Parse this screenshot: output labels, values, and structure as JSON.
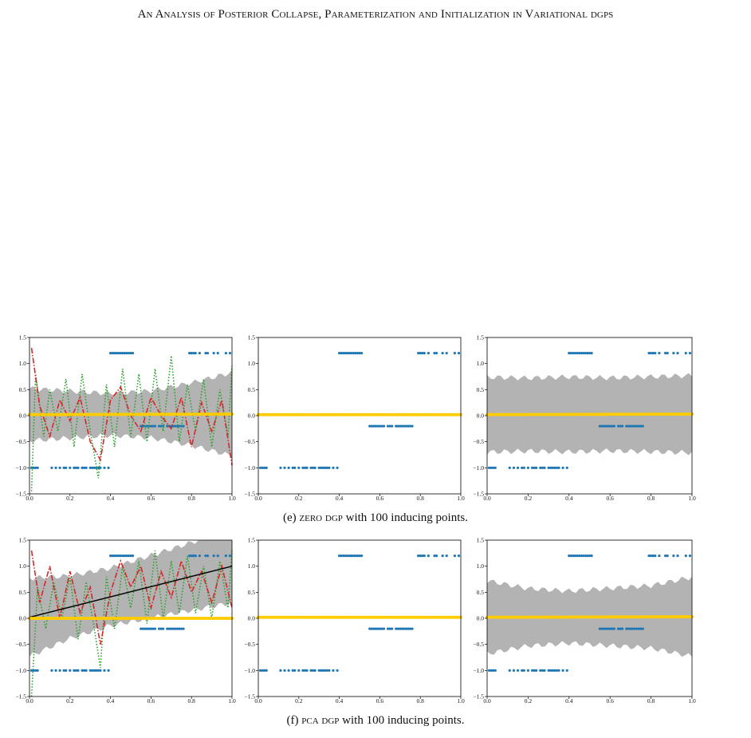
{
  "running_head": "An Analysis of Posterior Collapse, Parameterization and Initialization in Variational dgps",
  "captions": [
    {
      "label": "(e)",
      "method": "zero dgp",
      "rest": "with 100 inducing points."
    },
    {
      "label": "(f)",
      "method": "pca dgp",
      "rest": "with 100 inducing points."
    }
  ],
  "colors": {
    "data": "#1f77b4",
    "samples": "#ffcc00",
    "mean": "#000000",
    "band": "#b3b3b3",
    "dashdot": "#d62728",
    "dotted": "#2ca02c"
  },
  "chart_data": [
    {
      "type": "scatter",
      "panel": "e-layer-1",
      "xlim": [
        0,
        1
      ],
      "ylim": [
        -1.5,
        1.5
      ],
      "xticks": [
        "0.0",
        "0.2",
        "0.4",
        "0.6",
        "0.8",
        "1.0"
      ],
      "yticks": [
        "1.5",
        "1.0",
        "0.5",
        "0.0",
        "−0.5",
        "−1.0",
        "−1.5"
      ],
      "mean": [
        [
          0,
          0.02
        ],
        [
          1,
          0.03
        ]
      ],
      "band_half_width": [
        [
          0,
          0.5
        ],
        [
          0.2,
          0.45
        ],
        [
          0.4,
          0.4
        ],
        [
          0.6,
          0.45
        ],
        [
          0.8,
          0.6
        ],
        [
          1,
          0.8
        ]
      ],
      "dashdot": [
        [
          0.01,
          1.3
        ],
        [
          0.05,
          0.2
        ],
        [
          0.1,
          -0.4
        ],
        [
          0.15,
          0.3
        ],
        [
          0.2,
          -0.1
        ],
        [
          0.25,
          0.35
        ],
        [
          0.3,
          -0.5
        ],
        [
          0.35,
          -0.85
        ],
        [
          0.4,
          0.3
        ],
        [
          0.45,
          0.55
        ],
        [
          0.5,
          0.0
        ],
        [
          0.55,
          -0.3
        ],
        [
          0.6,
          0.35
        ],
        [
          0.65,
          0.0
        ],
        [
          0.7,
          -0.25
        ],
        [
          0.75,
          0.35
        ],
        [
          0.8,
          -0.6
        ],
        [
          0.85,
          0.25
        ],
        [
          0.9,
          -0.3
        ],
        [
          0.95,
          0.3
        ],
        [
          1,
          -0.95
        ]
      ],
      "dotted": [
        [
          0.01,
          -1.45
        ],
        [
          0.03,
          0.8
        ],
        [
          0.07,
          -0.4
        ],
        [
          0.1,
          0.5
        ],
        [
          0.14,
          -0.3
        ],
        [
          0.18,
          0.7
        ],
        [
          0.22,
          -0.6
        ],
        [
          0.26,
          0.8
        ],
        [
          0.3,
          -0.3
        ],
        [
          0.34,
          -1.2
        ],
        [
          0.38,
          0.6
        ],
        [
          0.42,
          -0.6
        ],
        [
          0.46,
          0.9
        ],
        [
          0.5,
          -0.4
        ],
        [
          0.54,
          0.8
        ],
        [
          0.58,
          -0.5
        ],
        [
          0.62,
          0.9
        ],
        [
          0.66,
          -0.3
        ],
        [
          0.7,
          1.15
        ],
        [
          0.74,
          -0.5
        ],
        [
          0.78,
          0.6
        ],
        [
          0.82,
          -0.3
        ],
        [
          0.86,
          0.7
        ],
        [
          0.9,
          -0.6
        ],
        [
          0.94,
          0.5
        ],
        [
          0.98,
          -0.4
        ],
        [
          1,
          0.95
        ]
      ]
    },
    {
      "type": "scatter",
      "panel": "e-layer-2",
      "xlim": [
        0,
        1
      ],
      "ylim": [
        -1.5,
        1.5
      ],
      "xticks": [
        "0.0",
        "0.2",
        "0.4",
        "0.6",
        "0.8",
        "1.0"
      ],
      "yticks": [
        "1.5",
        "1.0",
        "0.5",
        "0.0",
        "−0.5",
        "−1.0",
        "−1.5"
      ],
      "mean": [
        [
          0,
          0.02
        ],
        [
          1,
          0.02
        ]
      ],
      "band_half_width": [
        [
          0,
          0.01
        ],
        [
          1,
          0.01
        ]
      ]
    },
    {
      "type": "scatter",
      "panel": "e-layer-3",
      "xlim": [
        0,
        1
      ],
      "ylim": [
        -1.5,
        1.5
      ],
      "xticks": [
        "0.0",
        "0.2",
        "0.4",
        "0.6",
        "0.8",
        "1.0"
      ],
      "yticks": [
        "1.5",
        "1.0",
        "0.5",
        "0.0",
        "−0.5",
        "−1.0",
        "−1.5"
      ],
      "mean": [
        [
          0,
          0.02
        ],
        [
          1,
          0.03
        ]
      ],
      "band_half_width": [
        [
          0,
          0.72
        ],
        [
          0.2,
          0.7
        ],
        [
          0.4,
          0.72
        ],
        [
          0.6,
          0.7
        ],
        [
          0.8,
          0.72
        ],
        [
          1,
          0.74
        ]
      ]
    },
    {
      "type": "scatter",
      "panel": "f-layer-1",
      "xlim": [
        0,
        1
      ],
      "ylim": [
        -1.5,
        1.5
      ],
      "xticks": [
        "0.0",
        "0.2",
        "0.4",
        "0.6",
        "0.8",
        "1.0"
      ],
      "yticks": [
        "1.5",
        "1.0",
        "0.5",
        "0.0",
        "−0.5",
        "−1.0",
        "−1.5"
      ],
      "mean": [
        [
          0,
          0.02
        ],
        [
          1,
          1.0
        ]
      ],
      "band_half_width": [
        [
          0,
          0.75
        ],
        [
          0.2,
          0.6
        ],
        [
          0.4,
          0.55
        ],
        [
          0.6,
          0.6
        ],
        [
          0.8,
          0.65
        ],
        [
          1,
          0.7
        ]
      ],
      "dashdot": [
        [
          0.01,
          1.3
        ],
        [
          0.05,
          0.3
        ],
        [
          0.1,
          1.0
        ],
        [
          0.15,
          0.0
        ],
        [
          0.2,
          0.9
        ],
        [
          0.25,
          0.1
        ],
        [
          0.3,
          0.6
        ],
        [
          0.35,
          -0.5
        ],
        [
          0.4,
          0.5
        ],
        [
          0.45,
          1.1
        ],
        [
          0.5,
          0.6
        ],
        [
          0.55,
          1.0
        ],
        [
          0.6,
          0.2
        ],
        [
          0.65,
          0.9
        ],
        [
          0.7,
          0.4
        ],
        [
          0.75,
          1.1
        ],
        [
          0.8,
          0.5
        ],
        [
          0.85,
          0.9
        ],
        [
          0.9,
          0.3
        ],
        [
          0.95,
          1.0
        ],
        [
          1,
          0.2
        ]
      ],
      "dotted": [
        [
          0.01,
          -1.5
        ],
        [
          0.04,
          0.6
        ],
        [
          0.08,
          -0.2
        ],
        [
          0.12,
          0.7
        ],
        [
          0.16,
          0.0
        ],
        [
          0.2,
          0.8
        ],
        [
          0.24,
          -0.4
        ],
        [
          0.28,
          0.7
        ],
        [
          0.32,
          -0.2
        ],
        [
          0.35,
          -0.95
        ],
        [
          0.38,
          0.8
        ],
        [
          0.42,
          -0.2
        ],
        [
          0.46,
          1.0
        ],
        [
          0.5,
          0.2
        ],
        [
          0.54,
          1.1
        ],
        [
          0.58,
          -0.1
        ],
        [
          0.62,
          1.3
        ],
        [
          0.66,
          0.0
        ],
        [
          0.7,
          1.1
        ],
        [
          0.74,
          0.1
        ],
        [
          0.78,
          1.2
        ],
        [
          0.82,
          0.1
        ],
        [
          0.86,
          1.0
        ],
        [
          0.9,
          0.0
        ],
        [
          0.94,
          1.1
        ],
        [
          0.98,
          0.2
        ],
        [
          1,
          1.3
        ]
      ]
    },
    {
      "type": "scatter",
      "panel": "f-layer-2",
      "xlim": [
        0,
        1
      ],
      "ylim": [
        -1.5,
        1.5
      ],
      "xticks": [
        "0.0",
        "0.2",
        "0.4",
        "0.6",
        "0.8",
        "1.0"
      ],
      "yticks": [
        "1.5",
        "1.0",
        "0.5",
        "0.0",
        "−0.5",
        "−1.0",
        "−1.5"
      ],
      "mean": [
        [
          0,
          0.02
        ],
        [
          1,
          0.02
        ]
      ],
      "band_half_width": [
        [
          0,
          0.01
        ],
        [
          1,
          0.01
        ]
      ]
    },
    {
      "type": "scatter",
      "panel": "f-layer-3",
      "xlim": [
        0,
        1
      ],
      "ylim": [
        -1.5,
        1.5
      ],
      "xticks": [
        "0.0",
        "0.2",
        "0.4",
        "0.6",
        "0.8",
        "1.0"
      ],
      "yticks": [
        "1.5",
        "1.0",
        "0.5",
        "0.0",
        "−0.5",
        "−1.0",
        "−1.5"
      ],
      "mean": [
        [
          0,
          0.02
        ],
        [
          1,
          0.03
        ]
      ],
      "band_half_width": [
        [
          0,
          0.7
        ],
        [
          0.2,
          0.55
        ],
        [
          0.4,
          0.5
        ],
        [
          0.6,
          0.55
        ],
        [
          0.8,
          0.6
        ],
        [
          1,
          0.76
        ]
      ]
    }
  ],
  "data_points": {
    "x": [
      0.01,
      0.02,
      0.03,
      0.04,
      0.11,
      0.13,
      0.15,
      0.17,
      0.18,
      0.2,
      0.22,
      0.23,
      0.24,
      0.26,
      0.27,
      0.28,
      0.3,
      0.31,
      0.32,
      0.33,
      0.34,
      0.35,
      0.37,
      0.39,
      0.4,
      0.41,
      0.42,
      0.43,
      0.44,
      0.45,
      0.46,
      0.47,
      0.48,
      0.49,
      0.5,
      0.51,
      0.55,
      0.56,
      0.57,
      0.58,
      0.59,
      0.6,
      0.61,
      0.62,
      0.64,
      0.65,
      0.66,
      0.68,
      0.69,
      0.7,
      0.71,
      0.72,
      0.73,
      0.74,
      0.75,
      0.76,
      0.79,
      0.8,
      0.81,
      0.82,
      0.84,
      0.87,
      0.88,
      0.91,
      0.93,
      0.97,
      0.99
    ],
    "y": [
      -1,
      -1,
      -1,
      -1,
      -1,
      -1,
      -1,
      -1,
      -1,
      -1,
      -1,
      -1,
      -1,
      -1,
      -1,
      -1,
      -1,
      -1,
      -1,
      -1,
      -1,
      -1,
      -1,
      -1,
      1.2,
      1.2,
      1.2,
      1.2,
      1.2,
      1.2,
      1.2,
      1.2,
      1.2,
      1.2,
      1.2,
      1.2,
      -0.2,
      -0.2,
      -0.2,
      -0.2,
      -0.2,
      -0.2,
      -0.2,
      -0.2,
      -0.2,
      -0.2,
      -0.2,
      -0.2,
      -0.2,
      -0.2,
      -0.2,
      -0.2,
      -0.2,
      -0.2,
      -0.2,
      -0.2,
      1.2,
      1.2,
      1.2,
      1.2,
      1.2,
      1.2,
      1.2,
      1.2,
      1.2,
      1.2,
      1.2
    ]
  }
}
